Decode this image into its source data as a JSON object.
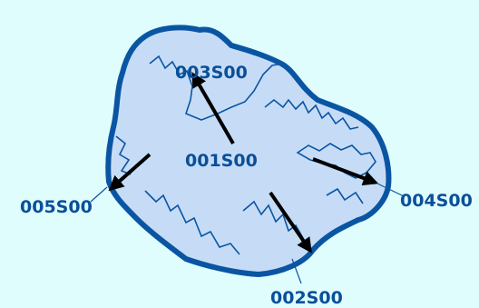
{
  "colors": {
    "background": "#dffdfd",
    "island_fill": "#c6dcf6",
    "coastline": "#0a55a3",
    "arrow": "#000000",
    "label": "#0a4f99"
  },
  "map": {
    "center_label": "001S00",
    "labels": {
      "north": "003S00",
      "southeast": "002S00",
      "east": "004S00",
      "west": "005S00"
    }
  }
}
